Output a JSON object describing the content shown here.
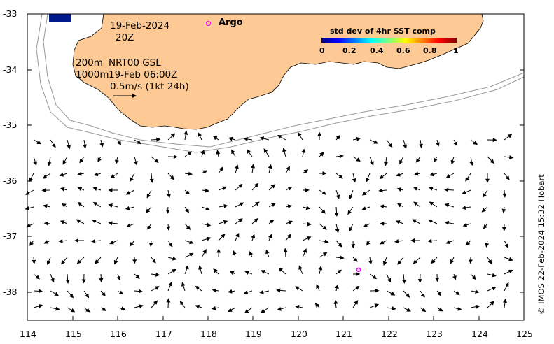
{
  "map": {
    "date_label": "19-Feb-2024",
    "time_label": "20Z",
    "depth_label_1": "200m",
    "depth_label_2": "1000m",
    "product_label": "NRT00 GSL",
    "product_time_label": "19-Feb 06:00Z",
    "scale_label": "0.5m/s (1kt 24h)",
    "argo_label": "Argo",
    "colorbar_title": "std dev of 4hr SST comp",
    "colorbar_ticks": [
      "0",
      "0.2",
      "0.4",
      "0.6",
      "0.8",
      "1"
    ],
    "x_ticks": [
      "114",
      "115",
      "116",
      "117",
      "118",
      "119",
      "120",
      "121",
      "122",
      "123",
      "124",
      "125"
    ],
    "y_ticks": [
      "-33",
      "-34",
      "-35",
      "-36",
      "-37",
      "-38"
    ],
    "credit": "© IMOS 22-Feb-2024 15:32 Hobart",
    "land_color": "#fdca96",
    "argo_color": "#ff00ff"
  }
}
